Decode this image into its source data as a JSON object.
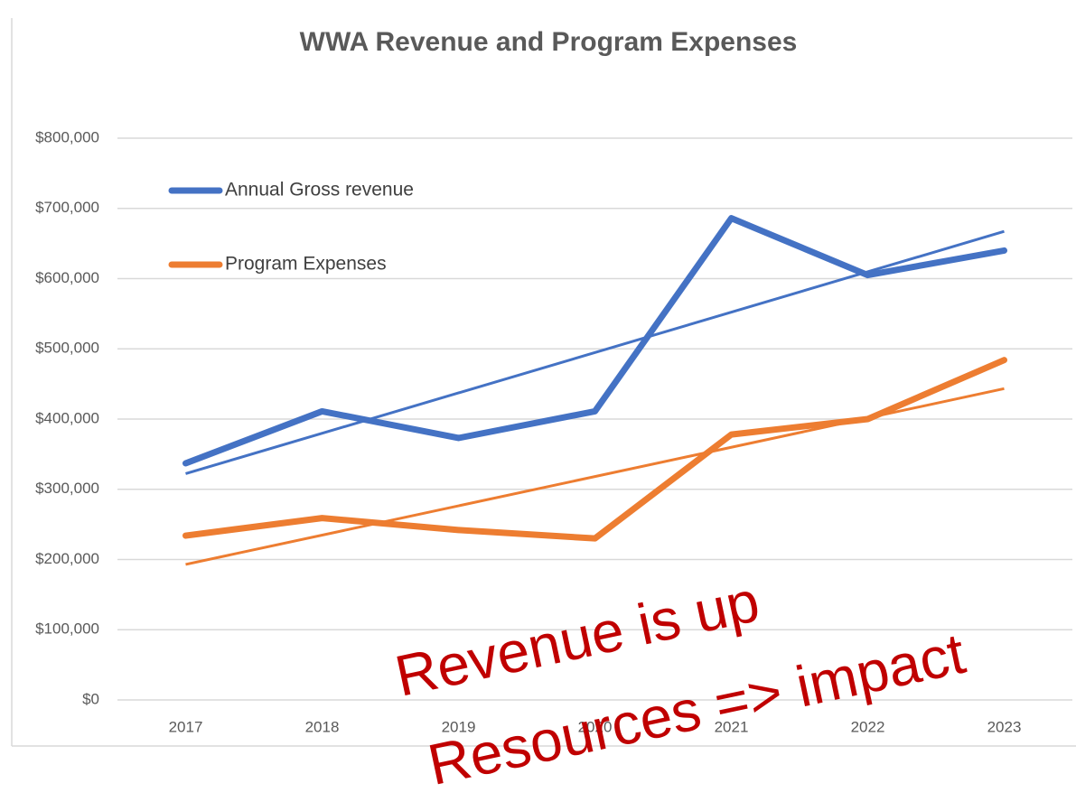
{
  "chart_data": {
    "type": "line",
    "title": "WWA  Revenue and Program Expenses",
    "categories": [
      "2017",
      "2018",
      "2019",
      "2020",
      "2021",
      "2022",
      "2023"
    ],
    "series": [
      {
        "name": "Annual Gross revenue",
        "color": "#4472c4",
        "values": [
          337000,
          411000,
          373000,
          411000,
          686000,
          605000,
          640000
        ]
      },
      {
        "name": "Program Expenses",
        "color": "#ed7d31",
        "values": [
          234000,
          259000,
          242000,
          230000,
          378000,
          400000,
          484000
        ]
      }
    ],
    "ylim": [
      0,
      800000
    ],
    "yticks": [
      {
        "value": 0,
        "label": "$0"
      },
      {
        "value": 100000,
        "label": "$100,000"
      },
      {
        "value": 200000,
        "label": "$200,000"
      },
      {
        "value": 300000,
        "label": "$300,000"
      },
      {
        "value": 400000,
        "label": "$400,000"
      },
      {
        "value": 500000,
        "label": "$500,000"
      },
      {
        "value": 600000,
        "label": "$600,000"
      },
      {
        "value": 700000,
        "label": "$700,000"
      },
      {
        "value": 800000,
        "label": "$800,000"
      }
    ],
    "grid": true,
    "trendline": "linear",
    "legend": "top-left",
    "annotations": [
      "Revenue is up",
      "Resources => impact"
    ]
  }
}
